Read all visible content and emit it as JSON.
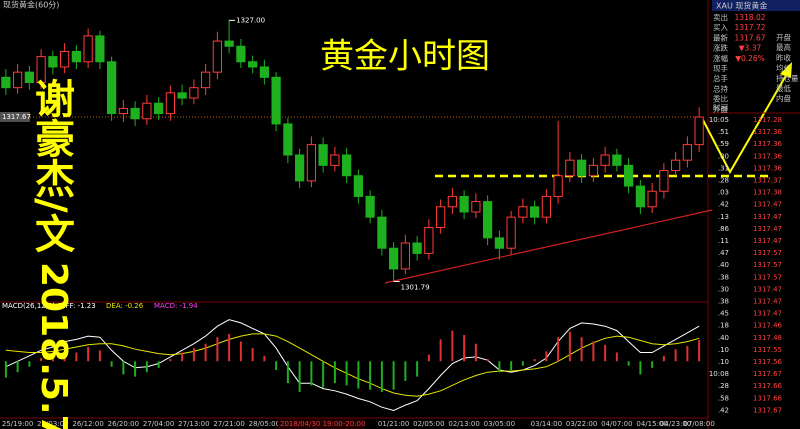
{
  "header": {
    "symbol": "现货黄金(60分)",
    "tab": "XAU 现货黄金"
  },
  "overlay": {
    "author": "谢豪杰/文",
    "date": "2018.5.7"
  },
  "quote": {
    "rows": [
      [
        "卖出",
        "1318.02"
      ],
      [
        "买入",
        "1317.72"
      ],
      [
        "最新",
        "1317.67"
      ],
      [
        "涨跌",
        "▼3.37"
      ],
      [
        "涨幅",
        "▼0.26%"
      ],
      [
        "现手"
      ],
      [
        "总手"
      ],
      [
        "总持"
      ],
      [
        "委比"
      ],
      [
        "外盘"
      ]
    ],
    "side": [
      "开盘",
      "最高",
      "昨收",
      "均价",
      "持仓量",
      "最低",
      "内盘"
    ],
    "list_header": "时间"
  },
  "trades": [
    [
      "10:05",
      "1317.28"
    ],
    [
      ".51",
      "1317.36"
    ],
    [
      ".59",
      "1317.36"
    ],
    [
      ".00",
      "1317.36"
    ],
    [
      ".31",
      "1317.36"
    ],
    [
      ".28",
      "1317.37"
    ],
    [
      ".03",
      "1317.38"
    ],
    [
      ".42",
      "1317.47"
    ],
    [
      ".13",
      "1317.47"
    ],
    [
      ".86",
      "1317.47"
    ],
    [
      ".11",
      "1317.47"
    ],
    [
      ".47",
      "1317.57"
    ],
    [
      ".40",
      "1317.57"
    ],
    [
      ".38",
      "1317.57"
    ],
    [
      ".30",
      "1317.47"
    ],
    [
      ".38",
      "1317.47"
    ],
    [
      ".45",
      "1317.47"
    ],
    [
      ".18",
      "1317.46"
    ],
    [
      ".40",
      "1317.48"
    ],
    [
      ".10",
      "1317.55"
    ],
    [
      ".10",
      "1317.56"
    ],
    [
      "10:08",
      "1317.67"
    ],
    [
      ".28",
      "1317.66"
    ],
    [
      ".58",
      "1317.66"
    ],
    [
      ".42",
      "1317.67"
    ]
  ],
  "chart_data": [
    {
      "type": "candlestick",
      "title": "黄金小时图",
      "categories": [
        null,
        "25/19:00",
        null,
        null,
        "26/03:00",
        null,
        null,
        "26/12:00",
        null,
        null,
        "26/20:00",
        null,
        null,
        "27/04:00",
        null,
        null,
        "27/13:00",
        null,
        null,
        "27/21:00",
        null,
        null,
        "28/05:00",
        null,
        null,
        "30/13:00",
        null,
        null,
        null,
        null,
        null,
        null,
        null,
        "01/21:00",
        null,
        null,
        "02/05:00",
        null,
        null,
        "02/13:00",
        null,
        null,
        "03/05:00",
        null,
        null,
        null,
        "03/14:00",
        null,
        null,
        "03/22:00",
        null,
        null,
        "04/07:00",
        null,
        null,
        "04/15:00",
        null,
        "04/23:00",
        null,
        "07/08:00"
      ],
      "open": [
        1321.5,
        1320.5,
        1322,
        1321,
        1323.5,
        1322.5,
        1324,
        1323,
        1325.5,
        1323,
        1318,
        1318.5,
        1317.5,
        1319,
        1318,
        1320,
        1319.5,
        1320.5,
        1322,
        1325,
        1324.5,
        1323,
        1322.5,
        1321.5,
        1317,
        1314,
        1311.5,
        1315,
        1313,
        1314,
        1312,
        1310,
        1308,
        1305,
        1303,
        1305.5,
        1304.5,
        1307,
        1309,
        1310,
        1308.5,
        1309.5,
        1306,
        1305,
        1308,
        1309,
        1308,
        1310,
        1312,
        1313.5,
        1312,
        1313,
        1314,
        1313,
        1311,
        1309,
        1310.5,
        1312.5,
        1313.5,
        1315
      ],
      "high": [
        1322.3,
        1322.8,
        1322.6,
        1324.2,
        1324.1,
        1324.8,
        1324.6,
        1326.2,
        1326,
        1323.5,
        1319.3,
        1319.2,
        1319.8,
        1319.6,
        1320.7,
        1320.8,
        1321.3,
        1322.8,
        1325.9,
        1327,
        1325.2,
        1323.6,
        1323.2,
        1322,
        1317.6,
        1314.6,
        1315.8,
        1315.7,
        1314.8,
        1314.7,
        1312.6,
        1310.6,
        1308.7,
        1305.6,
        1306.3,
        1306.2,
        1307.8,
        1309.7,
        1310.8,
        1310.6,
        1310.3,
        1310.1,
        1306.7,
        1308.6,
        1309.8,
        1309.6,
        1310.7,
        1317.3,
        1314.3,
        1314.1,
        1313.7,
        1314.8,
        1314.6,
        1313.7,
        1311.6,
        1311.3,
        1313.2,
        1314.3,
        1315.8,
        1318.6
      ],
      "low": [
        1319.8,
        1319.9,
        1320.3,
        1320.4,
        1321.8,
        1321.9,
        1322.3,
        1322.4,
        1322.3,
        1317.3,
        1317.2,
        1316.8,
        1316.9,
        1317.4,
        1317.3,
        1318.8,
        1318.9,
        1319.8,
        1321.3,
        1323.8,
        1322.4,
        1321.9,
        1320.8,
        1316.3,
        1313.2,
        1310.8,
        1310.9,
        1312.3,
        1312.4,
        1311.3,
        1309.3,
        1307.4,
        1304.3,
        1301.79,
        1302.5,
        1303.8,
        1303.9,
        1306.4,
        1308.3,
        1307.8,
        1307.9,
        1305.3,
        1303.9,
        1304.4,
        1307.4,
        1307.3,
        1307.4,
        1309.3,
        1311.4,
        1311.3,
        1311.4,
        1312.3,
        1312.4,
        1310.3,
        1308.3,
        1308.4,
        1309.8,
        1312,
        1312.8,
        1314.3
      ],
      "close": [
        1320.5,
        1322,
        1321,
        1323.5,
        1322.5,
        1324,
        1323,
        1325.5,
        1323,
        1318,
        1318.5,
        1317.5,
        1319,
        1318,
        1320,
        1319.5,
        1320.5,
        1322,
        1325,
        1324.5,
        1323,
        1322.5,
        1321.5,
        1317,
        1314,
        1311.5,
        1315,
        1313,
        1314,
        1312,
        1310,
        1308,
        1305,
        1303,
        1305.5,
        1304.5,
        1307,
        1309,
        1310,
        1308.5,
        1309.5,
        1306,
        1305,
        1308,
        1309,
        1308,
        1310,
        1312,
        1313.5,
        1312,
        1313,
        1314,
        1313,
        1311,
        1309,
        1310.5,
        1312.5,
        1313.5,
        1315,
        1317.67
      ],
      "up_color": "#ff3b3b",
      "down_color": "#1fb01f",
      "ylim": [
        1300,
        1328
      ],
      "last_price": 1317.67,
      "high_mark": {
        "value": 1327,
        "label": "1327.00"
      },
      "low_mark": 1301.79,
      "cursor_label": "2018/04/30 19:00-20:00"
    },
    {
      "type": "macd",
      "title": "MACD(26,12,9)",
      "series": [
        {
          "name": "DIFF: -1.23",
          "color": "#ffffff",
          "values": [
            -0.5,
            0,
            0.5,
            1,
            1.3,
            1.8,
            2,
            2.3,
            2.2,
            1,
            0,
            -0.6,
            -0.5,
            -0.2,
            0.4,
            1,
            1.6,
            2.3,
            3.2,
            3.8,
            3.5,
            3,
            2.5,
            1.2,
            -0.5,
            -2,
            -2,
            -2.5,
            -2.7,
            -3,
            -3.4,
            -3.7,
            -4.2,
            -4.5,
            -4,
            -3.6,
            -2.5,
            -1.3,
            -0.2,
            0.3,
            0.4,
            0.1,
            -0.8,
            -1,
            -0.8,
            -0.4,
            0.3,
            1.8,
            3,
            3.5,
            3.4,
            3.2,
            2.8,
            1.8,
            0.8,
            0.8,
            1.4,
            2,
            2.6,
            3.2
          ]
        },
        {
          "name": "DEA: -0.26",
          "color": "#e6e600",
          "values": [
            1,
            0.9,
            0.8,
            0.8,
            0.9,
            1.1,
            1.3,
            1.5,
            1.6,
            1.6,
            1.4,
            1.1,
            0.9,
            0.7,
            0.6,
            0.7,
            0.9,
            1.2,
            1.6,
            2,
            2.3,
            2.5,
            2.5,
            2.3,
            1.8,
            1.2,
            0.6,
            0,
            -0.6,
            -1.1,
            -1.6,
            -2,
            -2.5,
            -2.9,
            -3.1,
            -3.2,
            -3,
            -2.7,
            -2.2,
            -1.7,
            -1.3,
            -1,
            -0.9,
            -0.9,
            -0.8,
            -0.7,
            -0.5,
            0,
            0.6,
            1.2,
            1.7,
            2.1,
            2.3,
            2.2,
            1.9,
            1.6,
            1.5,
            1.6,
            1.8,
            2.1
          ]
        },
        {
          "name": "MACD: -1.94",
          "color": "#ff40ff",
          "values": [
            -1.5,
            -1,
            -0.5,
            0.3,
            0.5,
            1,
            0.8,
            1.3,
            1,
            -0.5,
            -1.2,
            -1.4,
            -1,
            -0.6,
            0.2,
            0.8,
            1.2,
            1.6,
            2.2,
            2.5,
            1.8,
            1.2,
            0.5,
            -0.8,
            -2,
            -2.8,
            -2.2,
            -2.4,
            -2,
            -2.2,
            -2.5,
            -2.6,
            -2.8,
            -2.6,
            -1.8,
            -1.4,
            0.6,
            2,
            2.8,
            2.4,
            1.6,
            0.2,
            -1,
            -0.8,
            -0.4,
            0.2,
            0.9,
            2.2,
            2.7,
            2.2,
            1.8,
            1.5,
            0.8,
            -0.4,
            -1.2,
            -0.6,
            0.5,
            1.1,
            1.4,
            1.94
          ]
        }
      ],
      "up_color": "#e03030",
      "down_color": "#1fb01f",
      "ylim": [
        -5,
        4.5
      ]
    }
  ]
}
